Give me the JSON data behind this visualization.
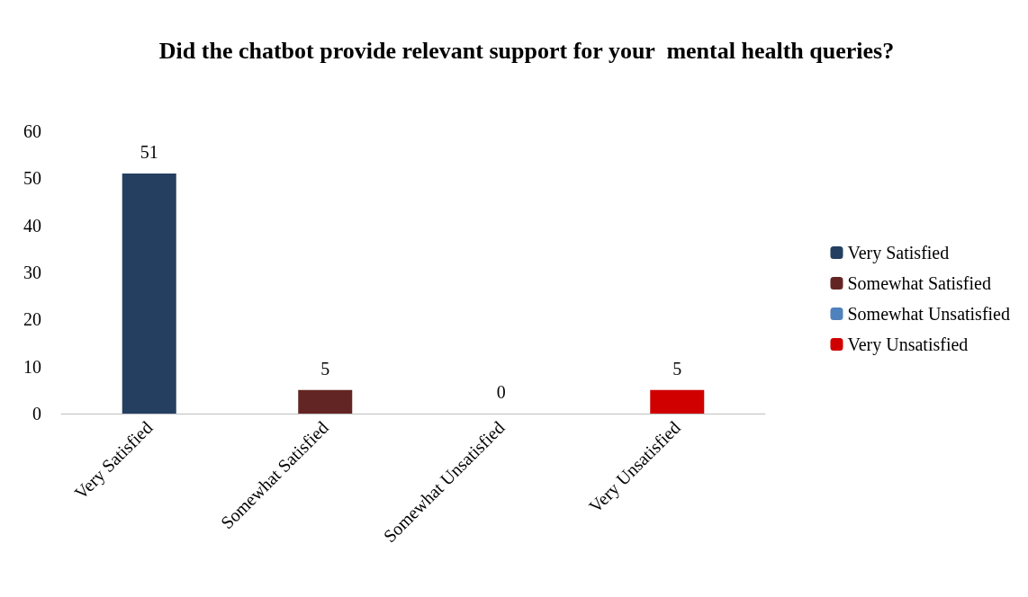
{
  "chart_data": {
    "type": "bar",
    "title": "Did the chatbot provide relevant support for your  mental health queries?",
    "categories": [
      "Very Satisfied",
      "Somewhat Satisfied",
      "Somewhat Unsatisfied",
      "Very Unsatisfied"
    ],
    "series": [
      {
        "name": "Very Satisfied",
        "color": "#243f60",
        "values": [
          51,
          null,
          null,
          null
        ]
      },
      {
        "name": "Somewhat Satisfied",
        "color": "#632523",
        "values": [
          null,
          5,
          null,
          null
        ]
      },
      {
        "name": "Somewhat Unsatisfied",
        "color": "#4f81bd",
        "values": [
          null,
          null,
          0,
          null
        ]
      },
      {
        "name": "Very Unsatisfied",
        "color": "#d00000",
        "values": [
          null,
          null,
          null,
          5
        ]
      }
    ],
    "ylim": [
      0,
      60
    ],
    "yticks": [
      0,
      10,
      20,
      30,
      40,
      50,
      60
    ],
    "grid": false,
    "legend": "right",
    "data_labels": true
  }
}
